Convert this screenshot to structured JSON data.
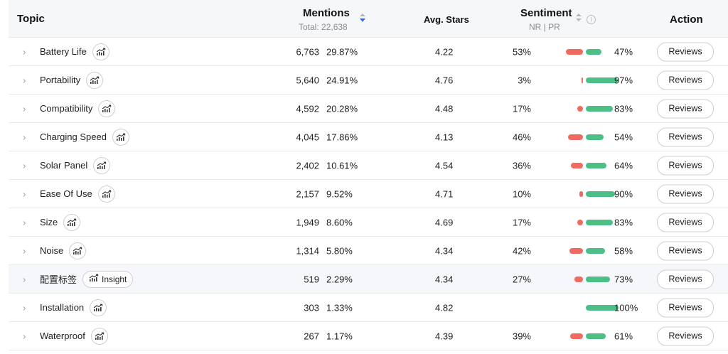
{
  "header": {
    "topic": "Topic",
    "mentions": "Mentions",
    "mentions_total": "Total: 22,638",
    "avg_stars": "Avg. Stars",
    "sentiment": "Sentiment",
    "sentiment_sub": "NR | PR",
    "action": "Action"
  },
  "icons": {
    "expand": "chevron-right-icon",
    "trend": "trend-chart-icon",
    "sort": "sort-icon",
    "info": "info-icon"
  },
  "colors": {
    "negative": "#f06a5f",
    "positive": "#4cbf86"
  },
  "rows": [
    {
      "topic": "Battery Life",
      "count": "6,763",
      "pct": "29.87%",
      "stars": "4.22",
      "nr": "53%",
      "pr": "47%",
      "action": "Reviews"
    },
    {
      "topic": "Portability",
      "count": "5,640",
      "pct": "24.91%",
      "stars": "4.76",
      "nr": "3%",
      "pr": "97%",
      "action": "Reviews"
    },
    {
      "topic": "Compatibility",
      "count": "4,592",
      "pct": "20.28%",
      "stars": "4.48",
      "nr": "17%",
      "pr": "83%",
      "action": "Reviews"
    },
    {
      "topic": "Charging Speed",
      "count": "4,045",
      "pct": "17.86%",
      "stars": "4.13",
      "nr": "46%",
      "pr": "54%",
      "action": "Reviews"
    },
    {
      "topic": "Solar Panel",
      "count": "2,402",
      "pct": "10.61%",
      "stars": "4.54",
      "nr": "36%",
      "pr": "64%",
      "action": "Reviews"
    },
    {
      "topic": "Ease Of Use",
      "count": "2,157",
      "pct": "9.52%",
      "stars": "4.71",
      "nr": "10%",
      "pr": "90%",
      "action": "Reviews"
    },
    {
      "topic": "Size",
      "count": "1,949",
      "pct": "8.60%",
      "stars": "4.69",
      "nr": "17%",
      "pr": "83%",
      "action": "Reviews"
    },
    {
      "topic": "Noise",
      "count": "1,314",
      "pct": "5.80%",
      "stars": "4.34",
      "nr": "42%",
      "pr": "58%",
      "action": "Reviews"
    },
    {
      "topic": "配置标签",
      "count": "519",
      "pct": "2.29%",
      "stars": "4.34",
      "nr": "27%",
      "pr": "73%",
      "action": "Reviews",
      "insight": "Insight"
    },
    {
      "topic": "Installation",
      "count": "303",
      "pct": "1.33%",
      "stars": "4.82",
      "nr": "",
      "pr": "100%",
      "action": "Reviews"
    },
    {
      "topic": "Waterproof",
      "count": "267",
      "pct": "1.17%",
      "stars": "4.39",
      "nr": "39%",
      "pr": "61%",
      "action": "Reviews"
    }
  ]
}
